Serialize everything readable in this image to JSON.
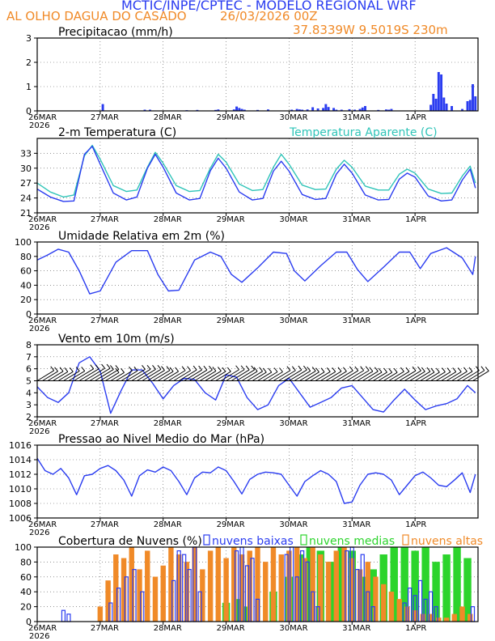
{
  "header": {
    "line1": "MCTIC/INPE/CPTEC - MODELO REGIONAL WRF",
    "location": "AL OLHO DAGUA DO CASADO",
    "run": "26/03/2026 00Z",
    "coords": "37.8339W 9.5019S 230m"
  },
  "colors": {
    "blue": "#2a3cf0",
    "orange": "#f08a28",
    "cyan": "#2fc4b8",
    "green": "#2cd42c",
    "title": "#2a3cf0"
  },
  "x_axis": {
    "ticks": [
      "26MAR",
      "27MAR",
      "28MAR",
      "29MAR",
      "30MAR",
      "31MAR",
      "1APR"
    ],
    "year": "2026",
    "hours_total": 168
  },
  "chart_data": [
    {
      "type": "bar",
      "title": "Precipitacao (mm/h)",
      "ylim": [
        0,
        3
      ],
      "yticks": [
        "0",
        "1",
        "2",
        "3"
      ],
      "hours": [
        25,
        41,
        43,
        57,
        61,
        68,
        69,
        75,
        76,
        77,
        78,
        79,
        84,
        88,
        97,
        99,
        100,
        101,
        103,
        105,
        107,
        109,
        110,
        111,
        113,
        114,
        116,
        119,
        121,
        123,
        124,
        125,
        130,
        133,
        134,
        135,
        150,
        151,
        152,
        153,
        154,
        155,
        156,
        158,
        162,
        164,
        165,
        166,
        167
      ],
      "values": [
        0.28,
        0.05,
        0.05,
        0.03,
        0.04,
        0.04,
        0.06,
        0.06,
        0.18,
        0.12,
        0.08,
        0.05,
        0.04,
        0.06,
        0.05,
        0.08,
        0.06,
        0.05,
        0.06,
        0.15,
        0.1,
        0.12,
        0.28,
        0.16,
        0.12,
        0.05,
        0.05,
        0.07,
        0.05,
        0.08,
        0.14,
        0.2,
        0.04,
        0.06,
        0.05,
        0.08,
        0.25,
        0.7,
        0.5,
        1.6,
        1.5,
        0.55,
        0.3,
        0.2,
        0.08,
        0.4,
        0.45,
        1.1,
        0.6
      ]
    },
    {
      "type": "line",
      "title": "2-m Temperatura (C)",
      "legend": "Temperatura Aparente (C)",
      "ylim": [
        21,
        36
      ],
      "yticks": [
        "21",
        "24",
        "27",
        "30",
        "33"
      ],
      "series": [
        {
          "name": "2-m Temperatura (C)",
          "x": [
            0,
            5,
            10,
            14,
            18,
            21,
            24,
            29,
            34,
            38,
            42,
            45,
            48,
            53,
            58,
            62,
            66,
            69,
            72,
            77,
            82,
            86,
            90,
            93,
            96,
            101,
            106,
            110,
            114,
            117,
            120,
            125,
            130,
            134,
            138,
            141,
            144,
            149,
            154,
            158,
            162,
            165,
            167
          ],
          "y": [
            25.8,
            24.2,
            23.3,
            23.4,
            32.8,
            34.4,
            30.8,
            25.0,
            23.6,
            24.2,
            30.0,
            32.8,
            30.2,
            25.0,
            23.6,
            23.9,
            29.5,
            32.0,
            30.0,
            25.2,
            23.6,
            23.9,
            29.4,
            31.4,
            29.4,
            24.7,
            23.7,
            23.9,
            28.8,
            30.8,
            29.0,
            24.6,
            23.6,
            23.7,
            27.8,
            29.0,
            28.2,
            24.4,
            23.4,
            23.6,
            27.6,
            29.8,
            26.0
          ]
        },
        {
          "name": "Temperatura Aparente (C)",
          "x": [
            0,
            5,
            10,
            14,
            18,
            21,
            24,
            29,
            34,
            38,
            42,
            45,
            48,
            53,
            58,
            62,
            66,
            69,
            72,
            77,
            82,
            86,
            90,
            93,
            96,
            101,
            106,
            110,
            114,
            117,
            120,
            125,
            130,
            134,
            138,
            141,
            144,
            149,
            154,
            158,
            162,
            165,
            167
          ],
          "y": [
            27.0,
            25.2,
            24.2,
            24.6,
            32.5,
            34.6,
            31.8,
            26.5,
            25.3,
            25.6,
            30.2,
            33.2,
            31.0,
            26.5,
            25.3,
            25.5,
            30.0,
            32.8,
            31.2,
            26.8,
            25.5,
            25.7,
            30.2,
            32.8,
            30.8,
            26.6,
            25.7,
            25.8,
            29.8,
            31.6,
            30.2,
            26.4,
            25.6,
            25.6,
            28.8,
            29.8,
            29.0,
            25.8,
            24.9,
            25.0,
            28.4,
            30.4,
            27.0
          ]
        }
      ]
    },
    {
      "type": "line",
      "title": "Umidade Relativa em 2m (%)",
      "ylim": [
        0,
        100
      ],
      "yticks": [
        "0",
        "20",
        "40",
        "60",
        "80",
        "100"
      ],
      "series": [
        {
          "name": "Umidade Relativa",
          "x": [
            0,
            4,
            8,
            12,
            16,
            20,
            24,
            30,
            36,
            42,
            46,
            50,
            54,
            60,
            66,
            70,
            74,
            78,
            84,
            90,
            95,
            98,
            102,
            108,
            114,
            118,
            122,
            126,
            132,
            138,
            142,
            146,
            150,
            156,
            162,
            166,
            167
          ],
          "y": [
            75,
            82,
            90,
            86,
            60,
            28,
            32,
            72,
            88,
            88,
            55,
            32,
            33,
            75,
            86,
            80,
            55,
            44,
            64,
            86,
            84,
            60,
            46,
            67,
            86,
            86,
            62,
            45,
            65,
            86,
            86,
            63,
            84,
            92,
            78,
            55,
            80
          ]
        }
      ]
    },
    {
      "type": "line",
      "title": "Vento em 10m (m/s)",
      "ylim": [
        2,
        8
      ],
      "yticks": [
        "2",
        "3",
        "4",
        "5",
        "6",
        "7",
        "8"
      ],
      "series": [
        {
          "name": "Vento em 10m",
          "x": [
            0,
            4,
            8,
            12,
            16,
            20,
            24,
            28,
            32,
            36,
            40,
            44,
            48,
            52,
            56,
            60,
            64,
            68,
            72,
            76,
            80,
            84,
            88,
            92,
            96,
            100,
            104,
            108,
            112,
            116,
            120,
            124,
            128,
            132,
            136,
            140,
            144,
            148,
            152,
            156,
            160,
            164,
            167
          ],
          "y": [
            4.5,
            3.6,
            3.2,
            4.0,
            6.5,
            7.0,
            5.8,
            2.3,
            4.2,
            5.9,
            5.9,
            4.8,
            3.5,
            4.6,
            5.2,
            5.1,
            4.0,
            3.4,
            5.5,
            5.3,
            3.6,
            2.6,
            3.0,
            4.6,
            5.2,
            4.0,
            2.8,
            3.2,
            3.6,
            4.4,
            4.6,
            3.6,
            2.6,
            2.4,
            3.4,
            4.3,
            3.4,
            2.6,
            2.9,
            3.1,
            3.5,
            4.6,
            4.0
          ]
        }
      ]
    },
    {
      "type": "line",
      "title": "Pressao ao Nivel Medio do Mar (hPa)",
      "ylim": [
        1006,
        1016
      ],
      "yticks": [
        "1006",
        "1008",
        "1010",
        "1012",
        "1014",
        "1016"
      ],
      "series": [
        {
          "name": "Pressao",
          "x": [
            0,
            3,
            6,
            9,
            12,
            15,
            18,
            21,
            24,
            27,
            30,
            33,
            36,
            39,
            42,
            45,
            48,
            51,
            54,
            57,
            60,
            63,
            66,
            69,
            72,
            75,
            78,
            81,
            84,
            87,
            90,
            93,
            96,
            99,
            102,
            105,
            108,
            111,
            114,
            117,
            120,
            123,
            126,
            129,
            132,
            135,
            138,
            141,
            144,
            147,
            150,
            153,
            156,
            159,
            162,
            165,
            167
          ],
          "y": [
            1014.2,
            1012.5,
            1012.0,
            1012.8,
            1011.5,
            1009.2,
            1011.8,
            1012.0,
            1012.8,
            1013.2,
            1012.5,
            1011.2,
            1009.0,
            1011.8,
            1012.6,
            1012.3,
            1013.0,
            1012.5,
            1011.0,
            1009.2,
            1011.5,
            1012.3,
            1012.2,
            1013.0,
            1012.5,
            1011.0,
            1009.3,
            1011.3,
            1012.0,
            1012.3,
            1012.2,
            1012.0,
            1010.5,
            1009.0,
            1011.0,
            1011.8,
            1012.5,
            1012.0,
            1011.0,
            1008.0,
            1008.2,
            1010.5,
            1012.0,
            1012.2,
            1012.0,
            1011.2,
            1009.2,
            1010.5,
            1011.8,
            1012.3,
            1011.5,
            1010.5,
            1010.3,
            1011.2,
            1012.2,
            1009.5,
            1012.0
          ]
        }
      ]
    },
    {
      "type": "bar",
      "title": "Cobertura de Nuvens (%)",
      "ylim": [
        0,
        100
      ],
      "yticks": [
        "0",
        "20",
        "40",
        "60",
        "80",
        "100"
      ],
      "legend": [
        "nuvens baixas",
        "nuvens medias",
        "nuvens altas"
      ],
      "altas": {
        "x": [
          24,
          27,
          30,
          33,
          36,
          39,
          42,
          45,
          48,
          51,
          54,
          57,
          60,
          63,
          66,
          69,
          72,
          75,
          78,
          81,
          84,
          87,
          90,
          93,
          96,
          99,
          102,
          105,
          108,
          111,
          114,
          117,
          120,
          123,
          126,
          129,
          132,
          135,
          138,
          141,
          144,
          147,
          150,
          153,
          156,
          159,
          162,
          165
        ],
        "y": [
          20,
          55,
          90,
          85,
          100,
          70,
          95,
          60,
          75,
          100,
          90,
          80,
          100,
          70,
          95,
          100,
          85,
          100,
          90,
          95,
          100,
          80,
          100,
          90,
          95,
          100,
          85,
          100,
          90,
          80,
          95,
          100,
          85,
          70,
          80,
          60,
          50,
          40,
          30,
          20,
          15,
          10,
          10,
          5,
          5,
          10,
          20,
          10
        ]
      },
      "medias": {
        "x": [
          72,
          76,
          80,
          90,
          96,
          100,
          104,
          108,
          112,
          116,
          120,
          124,
          128,
          132,
          136,
          140,
          144,
          148,
          152,
          156,
          160,
          164
        ],
        "y": [
          25,
          30,
          20,
          40,
          60,
          90,
          100,
          95,
          80,
          100,
          95,
          60,
          70,
          90,
          100,
          100,
          95,
          100,
          80,
          90,
          100,
          85
        ]
      },
      "baixas": {
        "x": [
          10,
          12,
          28,
          31,
          34,
          37,
          40,
          52,
          54,
          56,
          58,
          60,
          62,
          76,
          78,
          80,
          82,
          84,
          95,
          97,
          99,
          101,
          103,
          105,
          107,
          118,
          120,
          122,
          124,
          126,
          128,
          140,
          142,
          144,
          146,
          148,
          150,
          152,
          166
        ],
        "y": [
          15,
          10,
          25,
          45,
          60,
          70,
          40,
          55,
          95,
          90,
          70,
          100,
          40,
          95,
          100,
          75,
          85,
          30,
          90,
          100,
          60,
          95,
          80,
          40,
          20,
          95,
          100,
          70,
          90,
          40,
          20,
          25,
          45,
          35,
          55,
          30,
          40,
          20,
          20
        ]
      }
    }
  ]
}
